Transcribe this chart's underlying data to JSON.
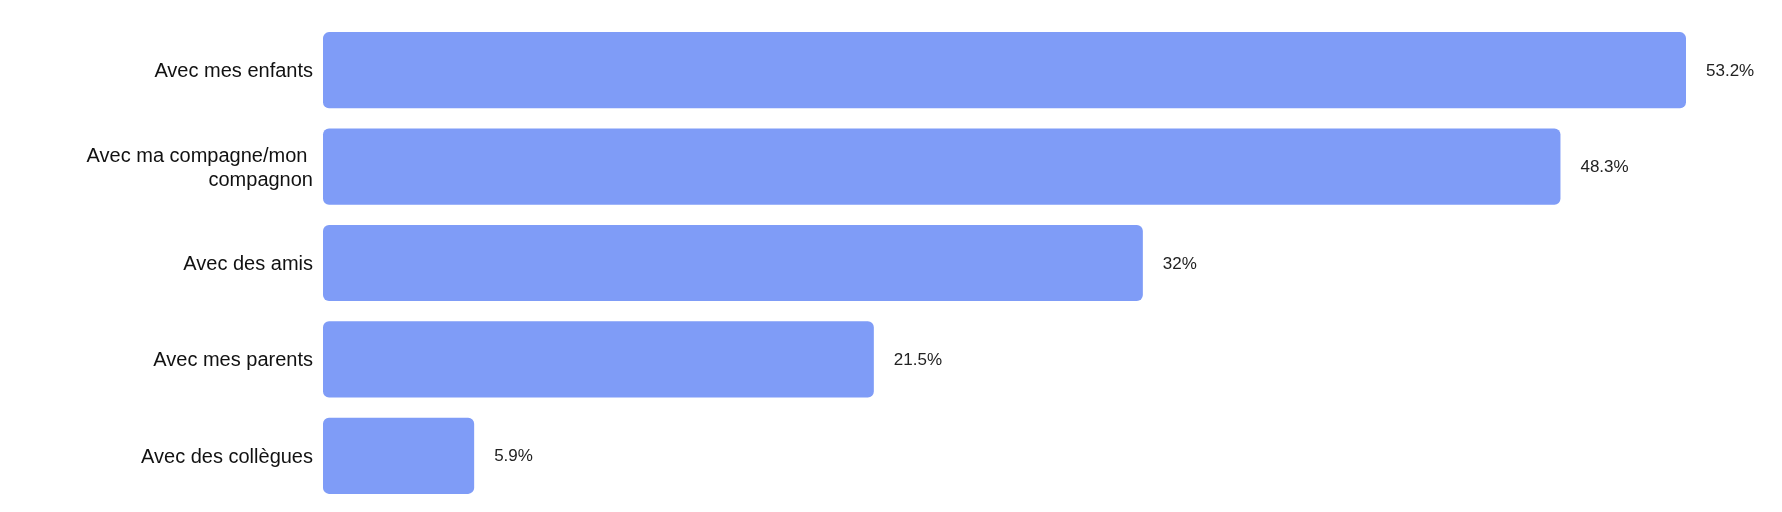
{
  "chart_data": {
    "type": "bar",
    "orientation": "horizontal",
    "categories": [
      "Avec mes enfants",
      "Avec ma compagne/mon compagnon",
      "Avec des amis",
      "Avec mes parents",
      "Avec des collègues"
    ],
    "values": [
      53.2,
      48.3,
      32,
      21.5,
      5.9
    ],
    "value_labels": [
      "53.2%",
      "48.3%",
      "32%",
      "21.5%",
      "5.9%"
    ],
    "color": "#7f9cf7",
    "grid": false,
    "tick_labels": "y"
  }
}
